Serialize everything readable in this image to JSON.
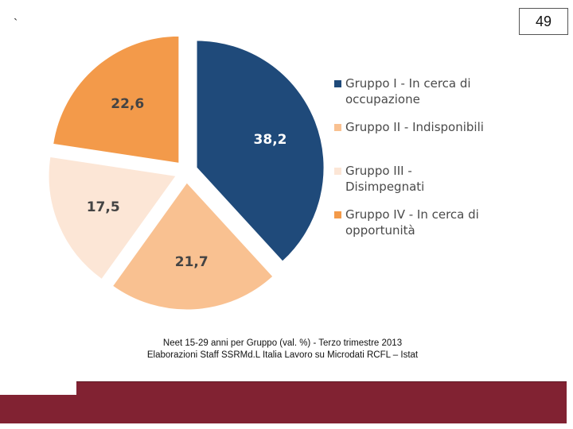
{
  "slide": {
    "corner_mark": "`",
    "page_number": "49",
    "caption_line1": "Neet 15-29 anni per Gruppo (val. %) - Terzo trimestre 2013",
    "caption_line2": "Elaborazioni Staff SSRMd.L Italia Lavoro su Microdati RCFL – Istat"
  },
  "chart_data": {
    "type": "pie",
    "title": "",
    "categories": [
      "Gruppo I - In cerca di occupazione",
      "Gruppo II - Indisponibili",
      "Gruppo III - Disimpegnati",
      "Gruppo IV - In cerca di opportunità"
    ],
    "values": [
      38.2,
      21.7,
      17.5,
      22.6
    ],
    "value_labels": [
      "38,2",
      "21,7",
      "17,5",
      "22,6"
    ],
    "colors": [
      "#1f4a7a",
      "#f9c191",
      "#fce6d6",
      "#f39a4a"
    ],
    "legend": {
      "placement": "right",
      "entries": [
        [
          "Gruppo I - In cerca di",
          "occupazione"
        ],
        [
          "Gruppo II - Indisponibili"
        ],
        [
          "Gruppo III -",
          "Disimpegnati"
        ],
        [
          "Gruppo IV - In cerca di",
          "opportunità"
        ]
      ]
    }
  }
}
